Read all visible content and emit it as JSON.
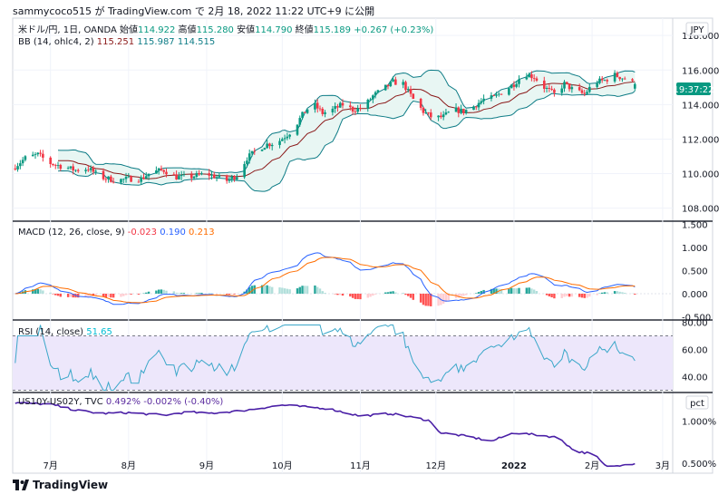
{
  "header": {
    "text": "sammycoco515 が TradingView.com で 2月 18, 2022 11:22 UTC+9 に公開"
  },
  "main": {
    "title_parts": [
      {
        "t": "米ドル/円, 1日, OANDA  始値",
        "c": "#131722"
      },
      {
        "t": "114.922",
        "c": "#089981"
      },
      {
        "t": "  高値",
        "c": "#131722"
      },
      {
        "t": "115.280",
        "c": "#089981"
      },
      {
        "t": "  安値",
        "c": "#131722"
      },
      {
        "t": "114.790",
        "c": "#089981"
      },
      {
        "t": "  終値",
        "c": "#131722"
      },
      {
        "t": "115.189",
        "c": "#089981"
      },
      {
        "t": "  +0.267 (+0.23%)",
        "c": "#089981"
      }
    ],
    "bb_parts": [
      {
        "t": "BB (14, ohlc4, 2)  ",
        "c": "#131722"
      },
      {
        "t": "115.251",
        "c": "#8b1a1a"
      },
      {
        "t": "  115.987",
        "c": "#0e7c86"
      },
      {
        "t": "  114.515",
        "c": "#0e7c86"
      }
    ],
    "currency": "JPY",
    "countdown": "19:37:22"
  },
  "macd": {
    "parts": [
      {
        "t": "MACD (12, 26, close, 9)  ",
        "c": "#131722"
      },
      {
        "t": "-0.023",
        "c": "#f23645"
      },
      {
        "t": "  0.190",
        "c": "#2962ff"
      },
      {
        "t": "  0.213",
        "c": "#ff6d00"
      }
    ]
  },
  "rsi": {
    "parts": [
      {
        "t": "RSI (14, close)  ",
        "c": "#131722"
      },
      {
        "t": "51.65",
        "c": "#00bcd4"
      }
    ]
  },
  "spread": {
    "parts": [
      {
        "t": "US10Y-US02Y, TVC  ",
        "c": "#131722"
      },
      {
        "t": "0.492%",
        "c": "#5b2c9f"
      },
      {
        "t": "  -0.002%",
        "c": "#5b2c9f"
      },
      {
        "t": "  (-0.40%)",
        "c": "#5b2c9f"
      }
    ],
    "unit": "pct"
  },
  "watermark": "TradingView",
  "chart_data": [
    {
      "type": "candlestick",
      "title": "米ドル/円, 1日, OANDA",
      "x_ticks": [
        "7月",
        "8月",
        "9月",
        "10月",
        "11月",
        "12月",
        "2022",
        "2月",
        "3月"
      ],
      "x_tick_days": [
        0,
        31,
        62,
        92,
        123,
        153,
        184,
        215,
        243
      ],
      "y_ticks": [
        108,
        110,
        112,
        114,
        116,
        118
      ],
      "ylim": [
        107.3,
        118.9
      ],
      "start_label": "7月",
      "last_day": 232,
      "anchors": [
        [
          -15,
          110.3
        ],
        [
          -10,
          110.9
        ],
        [
          -5,
          111.1
        ],
        [
          0,
          110.6
        ],
        [
          5,
          110.4
        ],
        [
          10,
          110.2
        ],
        [
          15,
          110.3
        ],
        [
          20,
          109.8
        ],
        [
          26,
          109.6
        ],
        [
          31,
          109.7
        ],
        [
          36,
          109.7
        ],
        [
          40,
          110.1
        ],
        [
          45,
          110.2
        ],
        [
          50,
          109.8
        ],
        [
          55,
          109.8
        ],
        [
          62,
          110.0
        ],
        [
          66,
          109.8
        ],
        [
          70,
          109.6
        ],
        [
          74,
          109.9
        ],
        [
          78,
          110.9
        ],
        [
          82,
          111.4
        ],
        [
          86,
          111.7
        ],
        [
          90,
          111.8
        ],
        [
          96,
          112.5
        ],
        [
          100,
          113.4
        ],
        [
          104,
          114.1
        ],
        [
          108,
          113.5
        ],
        [
          112,
          113.7
        ],
        [
          116,
          114.0
        ],
        [
          120,
          113.7
        ],
        [
          124,
          113.8
        ],
        [
          128,
          114.5
        ],
        [
          132,
          114.9
        ],
        [
          136,
          115.3
        ],
        [
          140,
          115.2
        ],
        [
          144,
          114.3
        ],
        [
          148,
          113.6
        ],
        [
          152,
          113.2
        ],
        [
          156,
          113.3
        ],
        [
          160,
          113.7
        ],
        [
          164,
          113.6
        ],
        [
          168,
          113.9
        ],
        [
          172,
          114.3
        ],
        [
          176,
          114.4
        ],
        [
          180,
          114.8
        ],
        [
          184,
          115.2
        ],
        [
          188,
          115.8
        ],
        [
          192,
          115.6
        ],
        [
          196,
          115.0
        ],
        [
          200,
          114.6
        ],
        [
          204,
          115.2
        ],
        [
          208,
          114.8
        ],
        [
          212,
          114.6
        ],
        [
          216,
          115.3
        ],
        [
          220,
          115.4
        ],
        [
          224,
          115.7
        ],
        [
          228,
          115.5
        ],
        [
          232,
          115.19
        ]
      ],
      "bb_period": 14,
      "bb_mult": 2,
      "series_names": [
        "BB basis",
        "BB upper",
        "BB lower"
      ],
      "colors": {
        "up": "#089981",
        "down": "#f23645",
        "basis": "#8b1a1a",
        "band": "#0e7c86",
        "fill": "#e8f6f3"
      }
    },
    {
      "type": "line+bar",
      "title": "MACD (12, 26, close, 9)",
      "y_ticks": [
        -0.5,
        0.0,
        0.5,
        1.0,
        1.5
      ],
      "y_tick_labels": [
        "-0.500",
        "0.000",
        "0.500",
        "1.000",
        "1.500"
      ],
      "ylim": [
        -0.55,
        1.55
      ],
      "last": {
        "hist": -0.023,
        "macd": 0.19,
        "signal": 0.213
      }
    },
    {
      "type": "line",
      "title": "RSI (14, close)",
      "y_ticks": [
        40,
        60,
        80
      ],
      "y_tick_labels": [
        "40.00",
        "60.00",
        "80.00"
      ],
      "ylim": [
        29,
        81
      ],
      "band": [
        30,
        70
      ],
      "last": 51.65
    },
    {
      "type": "line",
      "title": "US10Y-US02Y, TVC",
      "y_ticks": [
        0.5,
        1.0
      ],
      "y_tick_labels": [
        "0.500%",
        "1.000%"
      ],
      "ylim": [
        0.4,
        1.33
      ],
      "anchors": [
        [
          -15,
          1.22
        ],
        [
          0,
          1.2
        ],
        [
          10,
          1.13
        ],
        [
          20,
          1.09
        ],
        [
          31,
          1.1
        ],
        [
          45,
          1.07
        ],
        [
          55,
          1.11
        ],
        [
          62,
          1.09
        ],
        [
          75,
          1.12
        ],
        [
          92,
          1.19
        ],
        [
          110,
          1.15
        ],
        [
          123,
          1.06
        ],
        [
          135,
          1.09
        ],
        [
          150,
          1.01
        ],
        [
          155,
          0.86
        ],
        [
          165,
          0.82
        ],
        [
          175,
          0.76
        ],
        [
          184,
          0.86
        ],
        [
          195,
          0.83
        ],
        [
          202,
          0.8
        ],
        [
          208,
          0.64
        ],
        [
          213,
          0.62
        ],
        [
          216,
          0.6
        ],
        [
          220,
          0.47
        ],
        [
          224,
          0.46
        ],
        [
          228,
          0.49
        ],
        [
          232,
          0.492
        ]
      ],
      "last": 0.492
    }
  ]
}
